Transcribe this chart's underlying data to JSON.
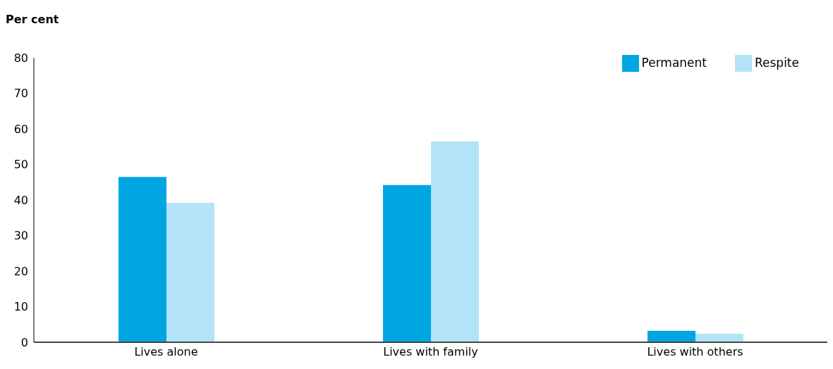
{
  "chart_data": {
    "type": "bar",
    "ylabel": "Per cent",
    "categories": [
      "Lives alone",
      "Lives with family",
      "Lives with others"
    ],
    "series": [
      {
        "name": "Permanent",
        "color": "#00a6e2",
        "values": [
          46.5,
          44.2,
          3.2
        ]
      },
      {
        "name": "Respite",
        "color": "#b3e3f6",
        "values": [
          39.2,
          56.5,
          2.4
        ]
      }
    ],
    "ylim": [
      0,
      80
    ],
    "yticks": [
      0,
      10,
      20,
      30,
      40,
      50,
      60,
      70,
      80
    ],
    "grid": false,
    "legend": "top right"
  }
}
